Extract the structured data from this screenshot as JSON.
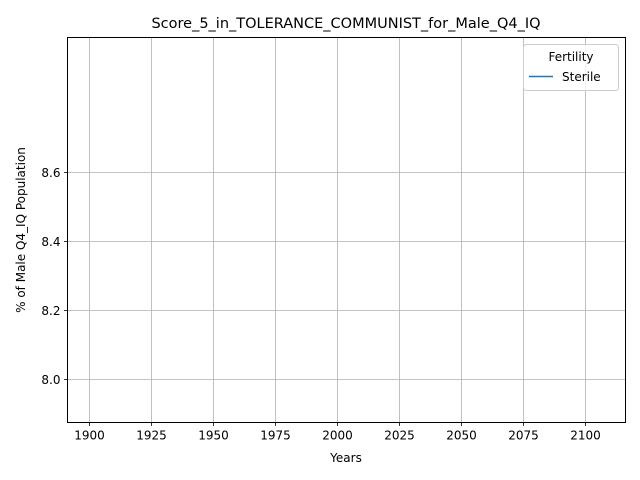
{
  "chart_data": {
    "type": "line",
    "title": "Score_5_in_TOLERANCE_COMMUNIST_for_Male_Q4_IQ",
    "xlabel": "Years",
    "ylabel": "% of Male Q4_IQ Population",
    "xlim": [
      1891.5,
      2116.5
    ],
    "ylim": [
      7.875,
      8.99
    ],
    "x_ticks": [
      1900,
      1925,
      1950,
      1975,
      2000,
      2025,
      2050,
      2075,
      2100
    ],
    "y_ticks": [
      8.0,
      8.2,
      8.4,
      8.6
    ],
    "x_tick_labels": [
      "1900",
      "1925",
      "1950",
      "1975",
      "2000",
      "2025",
      "2050",
      "2075",
      "2100"
    ],
    "y_tick_labels": [
      "8.0",
      "8.2",
      "8.4",
      "8.6"
    ],
    "grid": true,
    "legend": {
      "title": "Fertility",
      "placement": "top-right",
      "entries": [
        "Sterile"
      ]
    },
    "series": [
      {
        "name": "Sterile",
        "color": "#1f77b4",
        "x": [],
        "y": []
      }
    ]
  }
}
